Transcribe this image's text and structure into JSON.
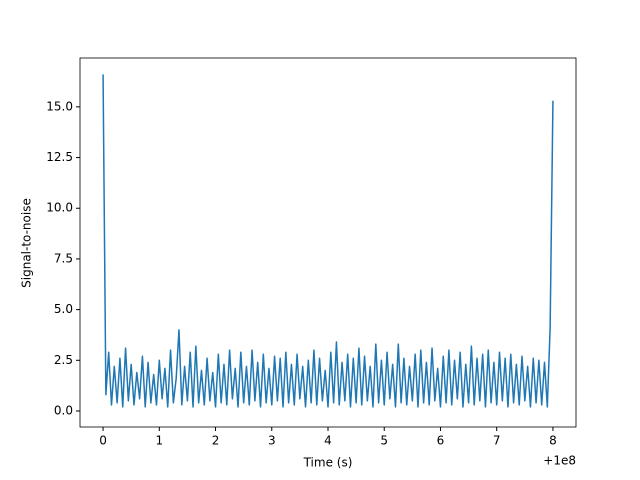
{
  "chart_data": {
    "type": "line",
    "xlabel": "Time (s)",
    "ylabel": "Signal-to-noise",
    "x_offset": "+1e8",
    "x": [
      0,
      0.05,
      0.1,
      0.15,
      0.2,
      0.25,
      0.3,
      0.35,
      0.4,
      0.45,
      0.5,
      0.55,
      0.6,
      0.65,
      0.7,
      0.75,
      0.8,
      0.85,
      0.9,
      0.95,
      1,
      1.05,
      1.1,
      1.15,
      1.2,
      1.25,
      1.3,
      1.35,
      1.4,
      1.45,
      1.5,
      1.55,
      1.6,
      1.65,
      1.7,
      1.75,
      1.8,
      1.85,
      1.9,
      1.95,
      2,
      2.05,
      2.1,
      2.15,
      2.2,
      2.25,
      2.3,
      2.35,
      2.4,
      2.45,
      2.5,
      2.55,
      2.6,
      2.65,
      2.7,
      2.75,
      2.8,
      2.85,
      2.9,
      2.95,
      3,
      3.05,
      3.1,
      3.15,
      3.2,
      3.25,
      3.3,
      3.35,
      3.4,
      3.45,
      3.5,
      3.55,
      3.6,
      3.65,
      3.7,
      3.75,
      3.8,
      3.85,
      3.9,
      3.95,
      4,
      4.05,
      4.1,
      4.15,
      4.2,
      4.25,
      4.3,
      4.35,
      4.4,
      4.45,
      4.5,
      4.55,
      4.6,
      4.65,
      4.7,
      4.75,
      4.8,
      4.85,
      4.9,
      4.95,
      5,
      5.05,
      5.1,
      5.15,
      5.2,
      5.25,
      5.3,
      5.35,
      5.4,
      5.45,
      5.5,
      5.55,
      5.6,
      5.65,
      5.7,
      5.75,
      5.8,
      5.85,
      5.9,
      5.95,
      6,
      6.05,
      6.1,
      6.15,
      6.2,
      6.25,
      6.3,
      6.35,
      6.4,
      6.45,
      6.5,
      6.55,
      6.6,
      6.65,
      6.7,
      6.75,
      6.8,
      6.85,
      6.9,
      6.95,
      7,
      7.05,
      7.1,
      7.15,
      7.2,
      7.25,
      7.3,
      7.35,
      7.4,
      7.45,
      7.5,
      7.55,
      7.6,
      7.65,
      7.7,
      7.75,
      7.8,
      7.85,
      7.9,
      7.95,
      8
    ],
    "series": [
      {
        "color": "#1f77b4",
        "values": [
          16.6,
          0.8,
          2.9,
          0.3,
          2.2,
          0.4,
          2.6,
          0.2,
          3.1,
          0.5,
          2.3,
          0.3,
          1.9,
          0.6,
          2.7,
          0.2,
          2.4,
          0.4,
          1.8,
          0.3,
          2.5,
          0.6,
          2.1,
          0.2,
          3.0,
          0.4,
          1.6,
          4.0,
          0.3,
          2.2,
          0.5,
          2.9,
          0.2,
          3.2,
          0.4,
          2.0,
          0.3,
          2.6,
          0.5,
          1.9,
          0.2,
          2.8,
          0.4,
          2.3,
          0.3,
          3.0,
          0.6,
          2.1,
          0.2,
          2.9,
          0.4,
          2.2,
          0.3,
          3.0,
          0.5,
          2.4,
          0.2,
          2.8,
          0.4,
          2.1,
          0.3,
          2.7,
          0.5,
          2.6,
          0.2,
          2.9,
          0.4,
          2.3,
          0.3,
          2.8,
          0.6,
          2.2,
          0.2,
          2.5,
          0.4,
          3.0,
          0.3,
          2.6,
          0.5,
          2.0,
          0.2,
          2.9,
          0.4,
          3.4,
          0.3,
          2.4,
          0.5,
          2.8,
          0.2,
          2.6,
          0.4,
          3.1,
          0.3,
          2.7,
          0.5,
          2.2,
          0.2,
          3.3,
          0.4,
          2.5,
          0.3,
          2.9,
          0.6,
          2.3,
          0.2,
          3.3,
          0.4,
          2.6,
          0.3,
          2.2,
          0.5,
          2.8,
          0.2,
          3.0,
          0.4,
          2.4,
          0.3,
          3.1,
          0.5,
          2.1,
          0.2,
          2.7,
          0.4,
          3.0,
          0.3,
          2.5,
          0.6,
          2.9,
          0.2,
          2.3,
          0.4,
          3.2,
          0.3,
          2.6,
          0.5,
          2.8,
          0.2,
          3.0,
          0.4,
          2.4,
          0.3,
          2.9,
          0.5,
          2.6,
          0.2,
          2.8,
          0.4,
          2.3,
          0.3,
          2.7,
          0.5,
          2.2,
          0.2,
          2.6,
          0.4,
          2.5,
          0.3,
          2.4,
          0.2,
          4.1,
          15.3
        ]
      }
    ],
    "xlim": [
      -0.41,
      8.41
    ],
    "ylim": [
      -0.79,
      17.41
    ],
    "xticks": [
      0,
      1,
      2,
      3,
      4,
      5,
      6,
      7,
      8
    ],
    "yticks": [
      {
        "value": 0,
        "label": "0.0"
      },
      {
        "value": 2.5,
        "label": "2.5"
      },
      {
        "value": 5,
        "label": "5.0"
      },
      {
        "value": 7.5,
        "label": "7.5"
      },
      {
        "value": 10,
        "label": "10.0"
      },
      {
        "value": 12.5,
        "label": "12.5"
      },
      {
        "value": 15,
        "label": "15.0"
      }
    ],
    "grid": false
  }
}
